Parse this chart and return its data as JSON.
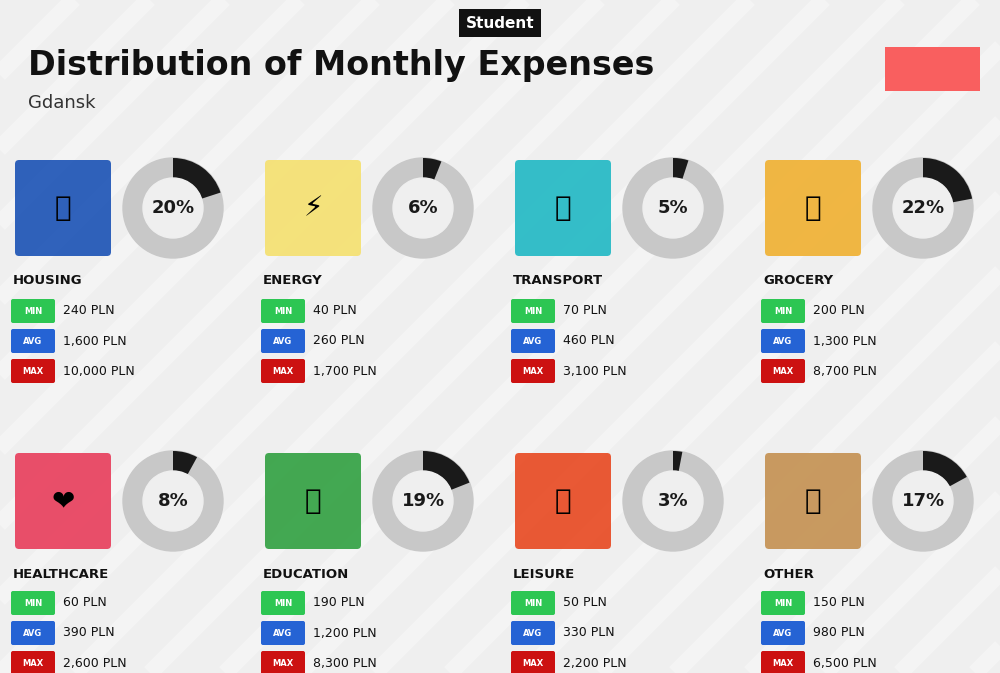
{
  "title": "Distribution of Monthly Expenses",
  "subtitle": "Student",
  "location": "Gdansk",
  "bg_color": "#efefef",
  "header_bg": "#111111",
  "header_text_color": "#ffffff",
  "title_color": "#111111",
  "location_color": "#333333",
  "accent_color": "#f95f5f",
  "categories": [
    {
      "name": "HOUSING",
      "pct": 20,
      "min": "240 PLN",
      "avg": "1,600 PLN",
      "max": "10,000 PLN",
      "icon": "housing",
      "row": 0,
      "col": 0
    },
    {
      "name": "ENERGY",
      "pct": 6,
      "min": "40 PLN",
      "avg": "260 PLN",
      "max": "1,700 PLN",
      "icon": "energy",
      "row": 0,
      "col": 1
    },
    {
      "name": "TRANSPORT",
      "pct": 5,
      "min": "70 PLN",
      "avg": "460 PLN",
      "max": "3,100 PLN",
      "icon": "transport",
      "row": 0,
      "col": 2
    },
    {
      "name": "GROCERY",
      "pct": 22,
      "min": "200 PLN",
      "avg": "1,300 PLN",
      "max": "8,700 PLN",
      "icon": "grocery",
      "row": 0,
      "col": 3
    },
    {
      "name": "HEALTHCARE",
      "pct": 8,
      "min": "60 PLN",
      "avg": "390 PLN",
      "max": "2,600 PLN",
      "icon": "healthcare",
      "row": 1,
      "col": 0
    },
    {
      "name": "EDUCATION",
      "pct": 19,
      "min": "190 PLN",
      "avg": "1,200 PLN",
      "max": "8,300 PLN",
      "icon": "education",
      "row": 1,
      "col": 1
    },
    {
      "name": "LEISURE",
      "pct": 3,
      "min": "50 PLN",
      "avg": "330 PLN",
      "max": "2,200 PLN",
      "icon": "leisure",
      "row": 1,
      "col": 2
    },
    {
      "name": "OTHER",
      "pct": 17,
      "min": "150 PLN",
      "avg": "980 PLN",
      "max": "6,500 PLN",
      "icon": "other",
      "row": 1,
      "col": 3
    }
  ],
  "min_color": "#2dc653",
  "avg_color": "#2563d4",
  "max_color": "#cc1111",
  "label_text_color": "#ffffff",
  "value_text_color": "#111111",
  "donut_bg_color": "#c8c8c8",
  "donut_fill_color": "#1a1a1a",
  "stripe_color": "#ffffff",
  "stripe_alpha": 0.35,
  "stripe_lw": 12
}
